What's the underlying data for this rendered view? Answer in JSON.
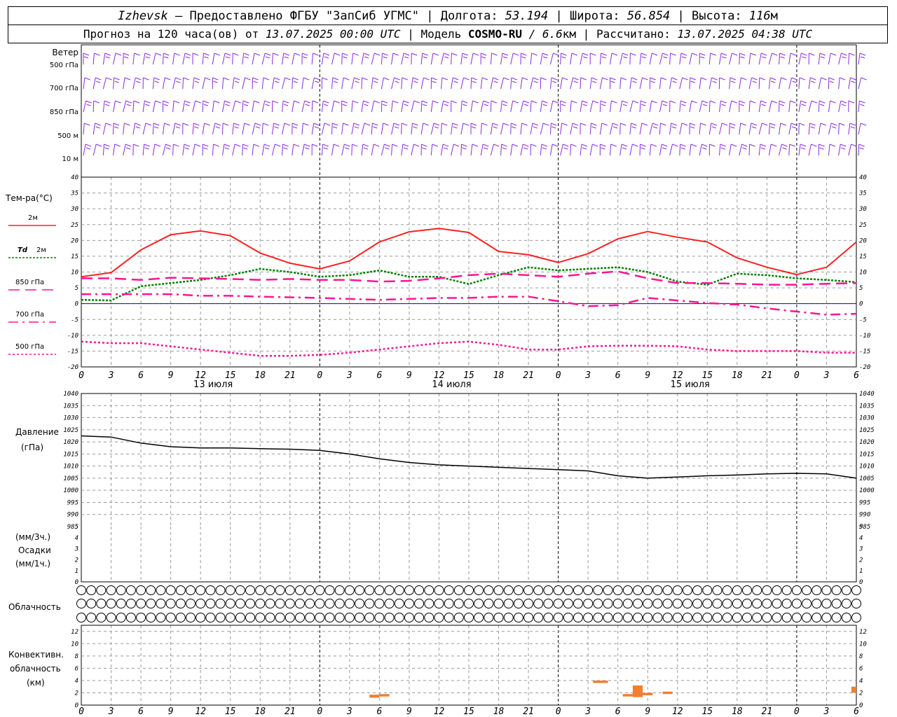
{
  "header": {
    "city": "Izhevsk",
    "dash": " – ",
    "provider": "Предоставлено ФГБУ \"ЗапСиб УГМС\"",
    "sep": " | ",
    "lon_label": "Долгота: ",
    "lon": "53.194",
    "lat_label": "Широта: ",
    "lat": "56.854",
    "alt_label": "Высота: ",
    "alt": "116",
    "alt_unit": "м",
    "forecast_prefix": "Прогноз на 120 часа(ов) от ",
    "forecast_time": "13.07.2025 00:00 UTC",
    "model_label": "Модель ",
    "model": "COSMO-RU",
    "model_res": " / 6.6",
    "model_unit": "км",
    "calc_label": "Рассчитано: ",
    "calc_time": "13.07.2025 04:38 UTC"
  },
  "colors": {
    "t2m": "#ff2020",
    "td2m": "#008000",
    "t850": "#ff1493",
    "t700": "#ff1493",
    "t500": "#ff1493",
    "wind": "#8a2be2",
    "pressure": "#000000",
    "convective": "#f08030",
    "zero_line": "#0000ff"
  },
  "labels": {
    "wind": "Ветер",
    "wind_levels": [
      "500 гПа",
      "700 гПа",
      "850 гПа",
      "500 м",
      "10  м"
    ],
    "temp_title": "Тем-ра(°C)",
    "t2m": "2м",
    "td_sym": "Td",
    "td2m": "2м",
    "t850": "850 гПа",
    "t700": "700 гПа",
    "t500": "500 гПа",
    "pressure": "Давление",
    "pressure_unit": "(гПа)",
    "precip_unit1": "(мм/3ч.)",
    "precip": "Осадки",
    "precip_unit2": "(мм/1ч.)",
    "clouds": "Облачность",
    "conv1": "Конвективн.",
    "conv2": "облачность",
    "conv3": "(км)"
  },
  "chart_data": [
    {
      "type": "line",
      "title": "Тем-ра(°C)",
      "x_hours": [
        0,
        3,
        6,
        9,
        12,
        15,
        18,
        21,
        24,
        27,
        30,
        33,
        36,
        39,
        42,
        45,
        48,
        51,
        54,
        57,
        60,
        63,
        66,
        69,
        72,
        75,
        78
      ],
      "x_tick_labels": [
        "0",
        "3",
        "6",
        "9",
        "12",
        "15",
        "18",
        "21",
        "0",
        "3",
        "6",
        "9",
        "12",
        "15",
        "18",
        "21",
        "0",
        "3",
        "6",
        "9",
        "12",
        "15",
        "18",
        "21",
        "0",
        "3",
        "6"
      ],
      "day_labels": [
        "13 июля",
        "14 июля",
        "15 июля"
      ],
      "ylim": [
        -20,
        40
      ],
      "y_ticks": [
        -20,
        -15,
        -10,
        -5,
        0,
        5,
        10,
        15,
        20,
        25,
        30,
        35,
        40
      ],
      "series": [
        {
          "name": "2м",
          "key": "t2m",
          "values": [
            8.5,
            9.8,
            17,
            21.8,
            23,
            21.5,
            16,
            12.8,
            11,
            13.5,
            19.5,
            22.7,
            23.8,
            22.5,
            16.5,
            15.5,
            13,
            15.8,
            20.5,
            22.8,
            21,
            19.5,
            14.5,
            11.5,
            9.2,
            11.5,
            19.5
          ]
        },
        {
          "name": "Td 2м",
          "key": "td2m",
          "values": [
            1.2,
            1.0,
            5.5,
            6.5,
            7.5,
            9,
            11,
            10,
            8.5,
            9,
            10.5,
            8.5,
            8.5,
            6.2,
            9,
            11.5,
            10.5,
            11,
            11.5,
            10,
            7,
            6,
            9.5,
            9,
            8,
            7.5,
            6.8
          ]
        },
        {
          "name": "850 гПа",
          "key": "t850",
          "values": [
            8,
            8,
            7.5,
            8.2,
            8,
            7.8,
            7.5,
            7.8,
            7.5,
            7.5,
            7,
            7.2,
            8,
            9,
            9.5,
            9,
            8.5,
            9.5,
            10.2,
            8,
            6.5,
            6.5,
            6.3,
            6,
            6,
            6.3,
            6.5
          ]
        },
        {
          "name": "700 гПа",
          "key": "t700",
          "values": [
            3,
            3,
            3,
            3,
            2.5,
            2.5,
            2.2,
            2,
            1.8,
            1.5,
            1.2,
            1.5,
            1.8,
            1.8,
            2.2,
            2.2,
            0.8,
            -0.8,
            -0.5,
            1.8,
            1,
            0.2,
            -0.3,
            -1.5,
            -2.5,
            -3.5,
            -3.2
          ]
        },
        {
          "name": "500 гПа",
          "key": "t500",
          "values": [
            -12,
            -12.5,
            -12.5,
            -13.5,
            -14.5,
            -15.5,
            -16.5,
            -16.5,
            -16.2,
            -15.5,
            -14.5,
            -13.5,
            -12.5,
            -12,
            -13,
            -14.5,
            -14.5,
            -13.5,
            -13.3,
            -13.3,
            -13.5,
            -14.5,
            -15,
            -15,
            -15,
            -15.5,
            -15.5
          ]
        }
      ]
    },
    {
      "type": "line",
      "title": "Давление",
      "ylabel": "(гПа)",
      "ylim": [
        985,
        1040
      ],
      "y_ticks": [
        985,
        990,
        995,
        1000,
        1005,
        1010,
        1015,
        1020,
        1025,
        1030,
        1035,
        1040
      ],
      "series": [
        {
          "name": "Давление",
          "key": "pressure",
          "values": [
            1022.5,
            1022,
            1019.5,
            1018,
            1017.5,
            1017.5,
            1017.2,
            1017,
            1016.5,
            1015,
            1013,
            1011.5,
            1010.5,
            1010,
            1009.5,
            1009,
            1008.5,
            1008,
            1006,
            1005,
            1005.5,
            1006,
            1006.3,
            1006.8,
            1007,
            1006.8,
            1005
          ]
        }
      ]
    },
    {
      "type": "bar",
      "title": "Осадки",
      "ylim": [
        0,
        5
      ],
      "y_ticks": [
        0,
        1,
        2,
        3,
        4,
        5
      ],
      "values": []
    },
    {
      "type": "bar",
      "title": "Конвективн. облачность (км)",
      "ylim": [
        0,
        13
      ],
      "y_ticks": [
        0,
        2,
        4,
        6,
        8,
        10,
        12
      ],
      "bars": [
        {
          "h0": 29,
          "h1": 30,
          "base": 1.2,
          "top": 1.7
        },
        {
          "h0": 30,
          "h1": 31,
          "base": 1.4,
          "top": 1.8
        },
        {
          "h0": 51.5,
          "h1": 53,
          "base": 3.6,
          "top": 4.0
        },
        {
          "h0": 54.5,
          "h1": 56,
          "base": 1.4,
          "top": 1.8
        },
        {
          "h0": 55.5,
          "h1": 56.5,
          "base": 1.3,
          "top": 3.2
        },
        {
          "h0": 56.5,
          "h1": 57.5,
          "base": 1.6,
          "top": 2.0
        },
        {
          "h0": 58.5,
          "h1": 59.5,
          "base": 1.8,
          "top": 2.2
        },
        {
          "h0": 77.5,
          "h1": 78,
          "base": 2.0,
          "top": 3.0
        }
      ]
    }
  ]
}
